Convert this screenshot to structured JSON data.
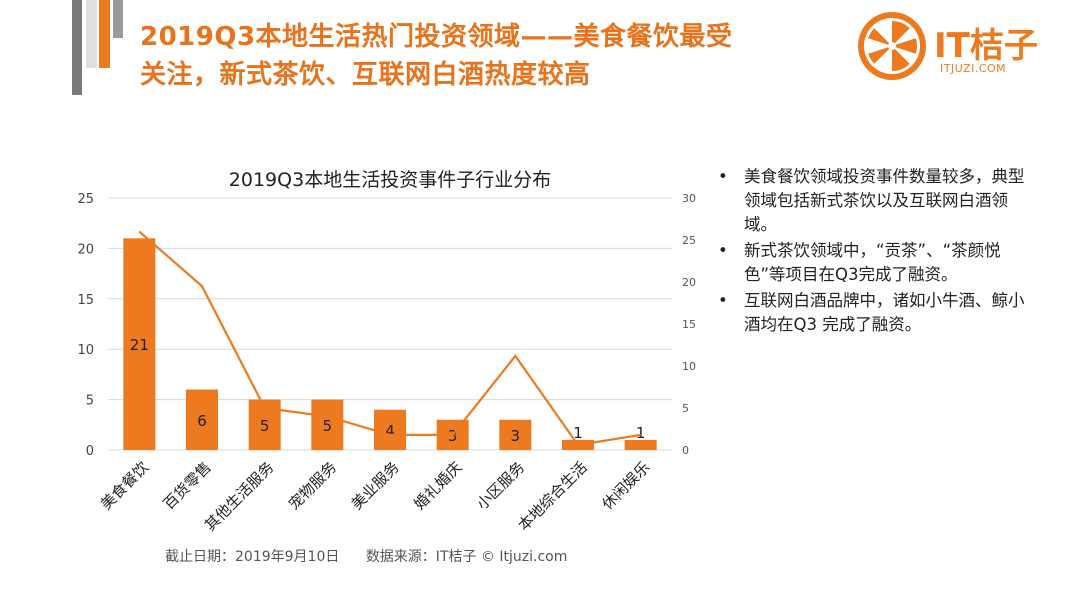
{
  "header": {
    "title_line1": "2019Q3本地生活热门投资领域——美食餐饮最受",
    "title_line2": "关注，新式茶饮、互联网白酒热度较高"
  },
  "logo": {
    "name": "IT桔子",
    "url": "ITJUZI.COM",
    "color": "#ee7a1f"
  },
  "chart_data": {
    "type": "bar",
    "title": "2019Q3本地生活投资事件子行业分布",
    "categories": [
      "美食餐饮",
      "百货零售",
      "其他生活服务",
      "宠物服务",
      "美业服务",
      "婚礼婚庆",
      "小区服务",
      "本地综合生活",
      "休闲娱乐"
    ],
    "series": [
      {
        "type": "bar",
        "axis": "left",
        "values": [
          21,
          6,
          5,
          5,
          4,
          3,
          3,
          1,
          1
        ],
        "color": "#ee7a1f"
      },
      {
        "type": "line",
        "axis": "right",
        "values": [
          26,
          19.5,
          5,
          4,
          1.8,
          1.8,
          11.2,
          0.6,
          1.8
        ],
        "color": "#ee7a1f"
      }
    ],
    "y_left": {
      "min": 0,
      "max": 25,
      "ticks": [
        0,
        5,
        10,
        15,
        20,
        25
      ]
    },
    "y_right": {
      "min": 0,
      "max": 30,
      "ticks": [
        0,
        5,
        10,
        15,
        20,
        25,
        30
      ]
    },
    "grid": true,
    "data_labels": true
  },
  "footnote": {
    "date": "截止日期：2019年9月10日",
    "source": "数据来源：IT桔子 © Itjuzi.com"
  },
  "bullets": [
    "美食餐饮领域投资事件数量较多，典型领域包括新式茶饮以及互联网白酒领域。",
    "新式茶饮领域中，“贡茶”、“茶颜悦色”等项目在Q3完成了融资。",
    "互联网白酒品牌中，诸如小牛酒、鲸小酒均在Q3 完成了融资。"
  ]
}
